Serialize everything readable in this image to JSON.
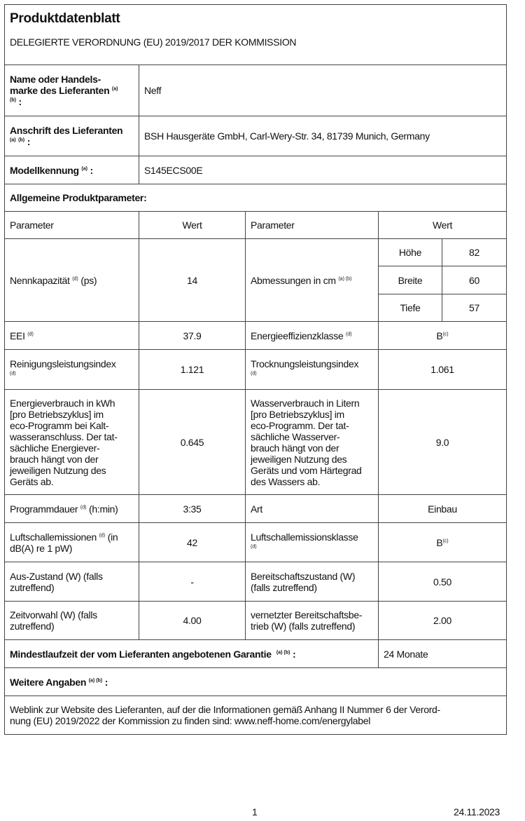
{
  "title": "Produktdatenblatt",
  "regulation": "DELEGIERTE VERORDNUNG (EU) 2019/2017 DER KOMMISSION",
  "supplier_name": {
    "label": "Name oder Handels-\nmarke des Lieferanten",
    "sup1": "(a)",
    "sup2": "(b)",
    "colon": ":",
    "value": "Neff"
  },
  "supplier_address": {
    "label": "Anschrift des Lieferanten",
    "sup1": "(a)",
    "sup2": "(b)",
    "colon": ":",
    "value": "BSH Hausgeräte GmbH, Carl-Wery-Str. 34, 81739 Munich, Germany"
  },
  "model": {
    "label": "Modellkennung",
    "sup": "(a)",
    "colon": ":",
    "value": "S145ECS00E"
  },
  "general_heading": "Allgemeine Produktparameter:",
  "headers": {
    "param": "Parameter",
    "value": "Wert"
  },
  "rows": {
    "capacity": {
      "label": "Nennkapazität",
      "sup": "(d)",
      "unit": "(ps)",
      "value": "14"
    },
    "dimensions": {
      "label": "Abmessungen in cm",
      "sup": "(a) (b)",
      "height_label": "Höhe",
      "height": "82",
      "width_label": "Breite",
      "width": "60",
      "depth_label": "Tiefe",
      "depth": "57"
    },
    "eei": {
      "label": "EEI",
      "sup": "(d)",
      "value": "37.9"
    },
    "energy_class": {
      "label": "Energieeffizienzklasse",
      "sup": "(d)",
      "value": "B",
      "value_sup": "(c)"
    },
    "cleaning": {
      "label": "Reinigungsleistungsindex",
      "sup": "(d)",
      "value": "1.121"
    },
    "drying": {
      "label": "Trocknungsleistungsindex",
      "sup": "(d)",
      "value": "1.061"
    },
    "energy": {
      "label": "Energieverbrauch in kWh\n[pro Betriebszyklus] im\neco-Programm bei Kalt-\nwasseranschluss. Der tat-\nsächliche Energiever-\nbrauch hängt von der\njeweiligen Nutzung des\nGeräts ab.",
      "value": "0.645"
    },
    "water": {
      "label": "Wasserverbrauch in Litern\n[pro Betriebszyklus] im\neco-Programm. Der tat-\nsächliche Wasserver-\nbrauch hängt von der\njeweiligen Nutzung des\nGeräts und vom Härtegrad\ndes Wassers ab.",
      "value": "9.0"
    },
    "duration": {
      "label": "Programmdauer",
      "sup": "(d)",
      "unit": "(h:min)",
      "value": "3:35"
    },
    "type": {
      "label": "Art",
      "value": "Einbau"
    },
    "noise": {
      "label1": "Luftschallemissionen",
      "sup": "(d)",
      "label2": "(in\ndB(A) re 1 pW)",
      "value": "42"
    },
    "noise_class": {
      "label": "Luftschallemissionsklasse",
      "sup": "(d)",
      "value": "B",
      "value_sup": "(c)"
    },
    "off": {
      "label": "Aus-Zustand (W) (falls\nzutreffend)",
      "value": "-"
    },
    "standby": {
      "label": "Bereitschaftszustand (W)\n(falls zutreffend)",
      "value": "0.50"
    },
    "delay": {
      "label": "Zeitvorwahl (W) (falls\nzutreffend)",
      "value": "4.00"
    },
    "networked": {
      "label": "vernetzter Bereitschaftsbe-\ntrieb (W) (falls zutreffend)",
      "value": "2.00"
    }
  },
  "warranty": {
    "label": "Mindestlaufzeit der vom Lieferanten angebotenen Garantie",
    "sup": "(a) (b)",
    "colon": ":",
    "value": "24 Monate"
  },
  "further": {
    "label": "Weitere Angaben",
    "sup": "(a) (b)",
    "colon": ":",
    "text": "Weblink zur Website des Lieferanten, auf der die Informationen gemäß Anhang II Nummer 6 der Verord-\nnung (EU) 2019/2022 der Kommission zu finden sind: www.neff-home.com/energylabel"
  },
  "footer": {
    "page": "1",
    "date": "24.11.2023"
  }
}
